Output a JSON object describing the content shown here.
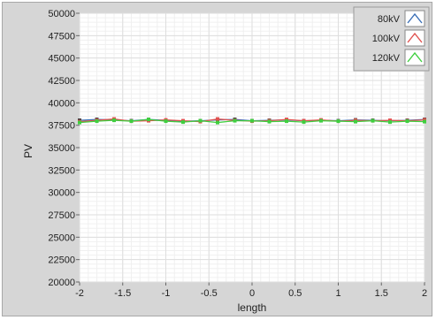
{
  "chart_data": {
    "type": "line",
    "xlabel": "length",
    "ylabel": "PV",
    "xlim": [
      -2,
      2
    ],
    "ylim": [
      20000,
      50000
    ],
    "xticks": [
      -2,
      -1.5,
      -1,
      -0.5,
      0,
      0.5,
      1,
      1.5,
      2
    ],
    "xtick_labels": [
      "-2",
      "-1.5",
      "-1",
      "-0.5",
      "0",
      "0.5",
      "1",
      "1.5",
      "2"
    ],
    "yticks": [
      20000,
      22500,
      25000,
      27500,
      30000,
      32500,
      35000,
      37500,
      40000,
      42500,
      45000,
      47500,
      50000
    ],
    "ytick_labels": [
      "20000",
      "22500",
      "25000",
      "27500",
      "30000",
      "32500",
      "35000",
      "37500",
      "40000",
      "42500",
      "45000",
      "47500",
      "50000"
    ],
    "grid": true,
    "legend_position": "top-right",
    "x": [
      -2,
      -1.8,
      -1.6,
      -1.4,
      -1.2,
      -1.0,
      -0.8,
      -0.6,
      -0.4,
      -0.2,
      0,
      0.2,
      0.4,
      0.6,
      0.8,
      1.0,
      1.2,
      1.4,
      1.6,
      1.8,
      2.0
    ],
    "series": [
      {
        "name": "80kV",
        "color": "#3b6fb6",
        "values": [
          38050,
          38150,
          38100,
          38000,
          38150,
          38050,
          37950,
          38000,
          38100,
          38150,
          38000,
          38050,
          38100,
          38000,
          38050,
          38000,
          38100,
          38050,
          38000,
          38050,
          38150
        ]
      },
      {
        "name": "100kV",
        "color": "#e0524f",
        "values": [
          37900,
          38050,
          38200,
          37950,
          38000,
          38100,
          38000,
          37900,
          38200,
          38050,
          37950,
          38000,
          38150,
          38000,
          38100,
          37950,
          38050,
          38000,
          38050,
          38000,
          38100
        ]
      },
      {
        "name": "120kV",
        "color": "#3fcf3f",
        "values": [
          37800,
          37950,
          38050,
          37950,
          38150,
          37950,
          37850,
          38000,
          37800,
          38000,
          38000,
          37900,
          37950,
          37850,
          38000,
          37950,
          37900,
          38000,
          37850,
          37950,
          37900
        ]
      }
    ]
  }
}
